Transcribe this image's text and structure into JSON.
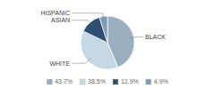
{
  "chart_data": {
    "type": "pie",
    "categories": [
      "BLACK",
      "WHITE",
      "ASIAN",
      "HISPANIC"
    ],
    "values": [
      43.7,
      38.5,
      12.9,
      4.9
    ],
    "value_labels": [
      "43.7%",
      "38.5%",
      "12.9%",
      "4.9%"
    ],
    "colors": [
      "#9ab0c0",
      "#c5d8e4",
      "#2e4f72",
      "#7a9eb8"
    ],
    "legend": "bottom"
  }
}
